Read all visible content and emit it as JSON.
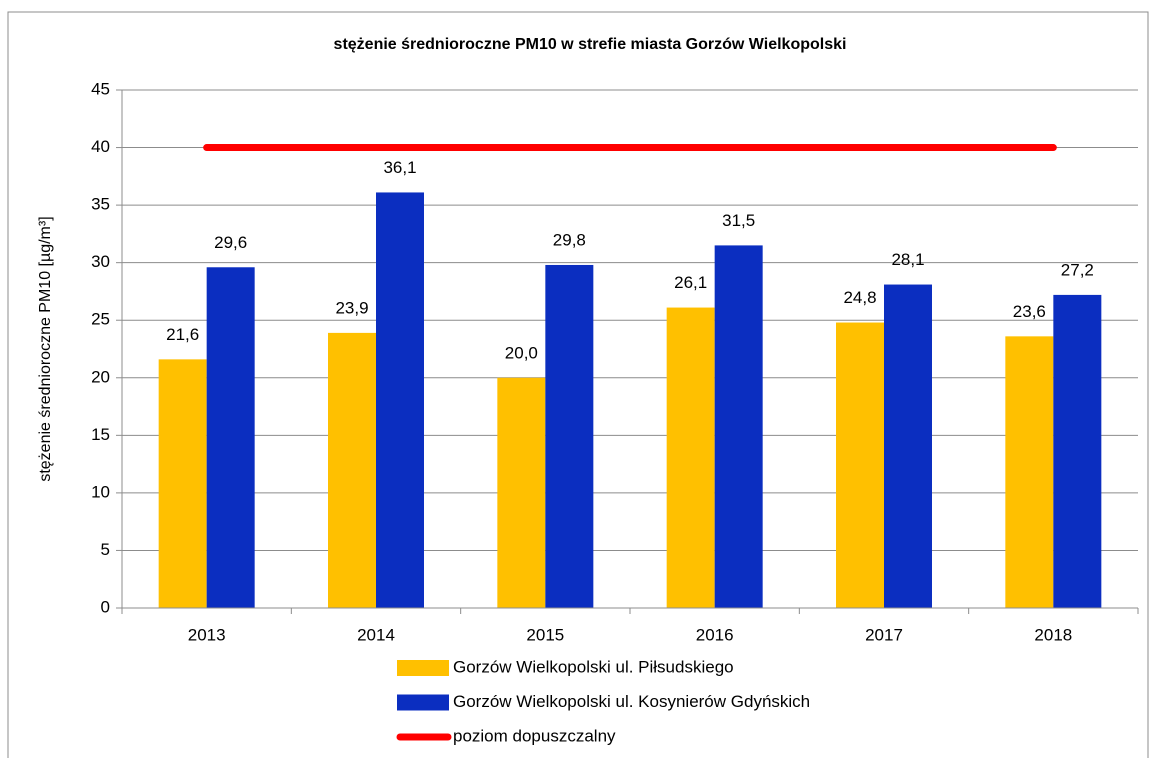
{
  "chart_data": {
    "type": "bar",
    "title": "stężenie średnioroczne PM10 w strefie miasta Gorzów Wielkopolski",
    "y_label": "stężenie średnioroczne PM10 [µg/m³]",
    "categories": [
      "2013",
      "2014",
      "2015",
      "2016",
      "2017",
      "2018"
    ],
    "series": [
      {
        "name": "Gorzów Wielkopolski ul. Piłsudskiego",
        "color": "#ffc000",
        "values": [
          21.6,
          23.9,
          20.0,
          26.1,
          24.8,
          23.6
        ],
        "value_labels": [
          "21,6",
          "23,9",
          "20,0",
          "26,1",
          "24,8",
          "23,6"
        ]
      },
      {
        "name": "Gorzów Wielkopolski ul. Kosynierów Gdyńskich",
        "color": "#0b2ec0",
        "values": [
          29.6,
          36.1,
          29.8,
          31.5,
          28.1,
          27.2
        ],
        "value_labels": [
          "29,6",
          "36,1",
          "29,8",
          "31,5",
          "28,1",
          "27,2"
        ]
      },
      {
        "name": "poziom dopuszczalny",
        "color": "#ff0000",
        "type": "line",
        "values": [
          40,
          40,
          40,
          40,
          40,
          40
        ]
      }
    ],
    "ylim": [
      0,
      45
    ],
    "yticks": [
      0,
      5,
      10,
      15,
      20,
      25,
      30,
      35,
      40,
      45
    ],
    "grid": true,
    "legend": "bottom"
  }
}
